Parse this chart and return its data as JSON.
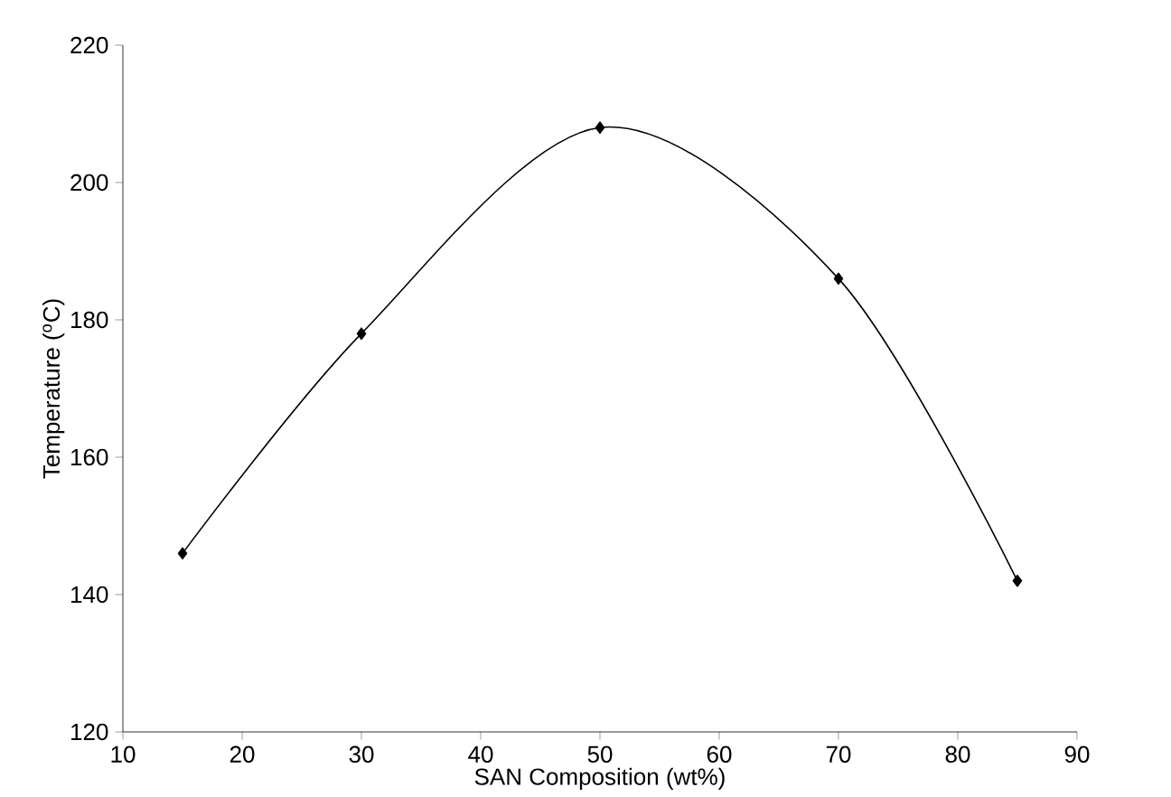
{
  "chart_data": {
    "type": "line",
    "xlabel": "SAN Composition (wt%)",
    "ylabel": "Temperature ($^{o}$C)",
    "x": [
      15,
      30,
      50,
      70,
      85
    ],
    "series": [
      {
        "color": "#000000",
        "values": [
          146,
          178,
          208,
          186,
          142
        ]
      }
    ],
    "xlim": [
      10,
      90
    ],
    "xticks": [
      10,
      20,
      30,
      40,
      50,
      60,
      70,
      80,
      90
    ],
    "ylim": [
      120,
      220
    ],
    "yticks": [
      120,
      140,
      160,
      180,
      200,
      220
    ],
    "grid": false,
    "marker": "diamond",
    "line_style": "solid"
  }
}
